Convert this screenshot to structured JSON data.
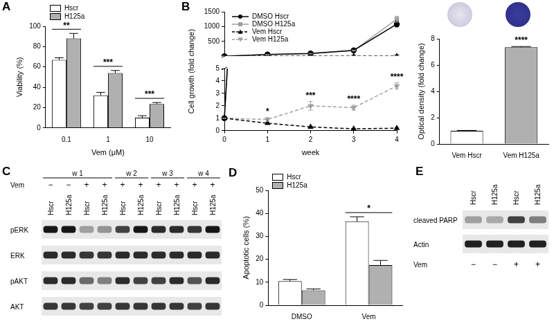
{
  "chart_data": [
    {
      "panel": "A",
      "type": "bar",
      "categories": [
        "0.1",
        "1",
        "10"
      ],
      "xlabel": "Vem (μM)",
      "ylabel": "Viability (%)",
      "ylim": [
        0,
        100
      ],
      "yticks": [
        0,
        20,
        40,
        60,
        80,
        100
      ],
      "grid": false,
      "legend": "upper left",
      "series": [
        {
          "name": "Hscr",
          "color": "#ffffff",
          "values": [
            67,
            32,
            10
          ],
          "errors": [
            2,
            3,
            2
          ]
        },
        {
          "name": "H125a",
          "color": "#b0b0b0",
          "values": [
            88,
            54,
            23.5
          ],
          "errors": [
            5,
            2.5,
            1.5
          ]
        }
      ],
      "annotations": [
        {
          "category": "0.1",
          "text": "**"
        },
        {
          "category": "1",
          "text": "***"
        },
        {
          "category": "10",
          "text": "***"
        }
      ]
    },
    {
      "panel": "B",
      "type": "line",
      "x": [
        0,
        1,
        2,
        3,
        4
      ],
      "xlim": [
        0,
        4
      ],
      "xticks": [
        0,
        1,
        2,
        3,
        4
      ],
      "xlabel": "week",
      "ylabel": "Cell growth (fold change)",
      "ylim": [
        0,
        1500
      ],
      "yticks": [
        0,
        1,
        2,
        3,
        4,
        5,
        500,
        1000,
        1500
      ],
      "y_break": 5,
      "grid": false,
      "legend": "upper left",
      "series": [
        {
          "name": "DMSO Hscr",
          "color": "#000000",
          "marker": "circle",
          "line_style": "solid",
          "values": [
            1,
            60,
            90,
            200,
            1080
          ],
          "errors": [
            0,
            5,
            8,
            15,
            90
          ]
        },
        {
          "name": "DMSO H125a",
          "color": "#a0a0a0",
          "marker": "square",
          "line_style": "solid",
          "values": [
            1,
            55,
            85,
            190,
            1250
          ],
          "errors": [
            0,
            5,
            8,
            15,
            100
          ]
        },
        {
          "name": "Vem Hscr",
          "color": "#000000",
          "marker": "triangle",
          "line_style": "dashed",
          "values": [
            1,
            0.6,
            0.3,
            0.15,
            0.2
          ],
          "errors": [
            0,
            0.03,
            0.03,
            0.02,
            0.03
          ]
        },
        {
          "name": "Vem H125a",
          "color": "#a0a0a0",
          "marker": "triangle-down",
          "line_style": "dashed",
          "values": [
            1,
            0.9,
            2.0,
            1.85,
            3.6
          ],
          "errors": [
            0,
            0.15,
            0.35,
            0.2,
            0.25
          ]
        }
      ],
      "annotations": [
        {
          "x": 1,
          "series": "Vem H125a",
          "text": "*"
        },
        {
          "x": 2,
          "series": "Vem H125a",
          "text": "***"
        },
        {
          "x": 3,
          "series": "Vem H125a",
          "text": "****"
        },
        {
          "x": 4,
          "series": "Vem H125a",
          "text": "****"
        }
      ]
    },
    {
      "type": "bar",
      "categories": [
        "Vem Hscr",
        "Vem H125a"
      ],
      "ylabel": "Optical density (fold change)",
      "ylim": [
        0,
        8
      ],
      "yticks": [
        0,
        2,
        4,
        6,
        8
      ],
      "grid": false,
      "colors": [
        "#ffffff",
        "#b0b0b0"
      ],
      "values": [
        1,
        7.35
      ],
      "errors": [
        0.03,
        0.06
      ],
      "annotations": [
        {
          "category": "Vem H125a",
          "text": "****"
        }
      ]
    },
    {
      "panel": "D",
      "type": "bar",
      "categories": [
        "DMSO",
        "Vem"
      ],
      "ylabel": "Apoptotic cells (%)",
      "ylim": [
        0,
        50
      ],
      "yticks": [
        0,
        10,
        20,
        30,
        40,
        50
      ],
      "grid": false,
      "legend": "upper left",
      "series": [
        {
          "name": "Hscr",
          "color": "#ffffff",
          "values": [
            10.5,
            36.5
          ],
          "errors": [
            0.7,
            2
          ]
        },
        {
          "name": "H125a",
          "color": "#b0b0b0",
          "values": [
            6.5,
            17.5
          ],
          "errors": [
            0.6,
            2
          ]
        }
      ],
      "annotations": [
        {
          "category": "Vem",
          "text": "*"
        }
      ]
    }
  ],
  "blots": [
    {
      "panel": "C",
      "groups": [
        {
          "label": "w 1",
          "lanes": 4
        },
        {
          "label": "w 2",
          "lanes": 2
        },
        {
          "label": "w 3",
          "lanes": 2
        },
        {
          "label": "w 4",
          "lanes": 2
        }
      ],
      "lanes": [
        "Hscr",
        "H125a",
        "Hscr",
        "H125a",
        "Hscr",
        "H125a",
        "Hscr",
        "H125a",
        "Hscr",
        "H125a"
      ],
      "treatment_label": "Vem",
      "treatment": [
        "−",
        "−",
        "+",
        "+",
        "+",
        "+",
        "+",
        "+",
        "+",
        "+"
      ],
      "rows": [
        {
          "label": "pERK",
          "intensity": [
            1,
            1,
            0.35,
            0.4,
            0.8,
            1,
            0.9,
            0.9,
            0.85,
            1
          ]
        },
        {
          "label": "ERK",
          "intensity": [
            0.9,
            0.9,
            0.85,
            0.85,
            0.9,
            0.9,
            0.9,
            0.9,
            0.9,
            0.9
          ]
        },
        {
          "label": "pAKT",
          "intensity": [
            0.9,
            0.9,
            0.6,
            0.5,
            0.9,
            0.8,
            0.8,
            0.9,
            0.7,
            0.9
          ]
        },
        {
          "label": "AKT",
          "intensity": [
            0.85,
            0.85,
            0.8,
            0.8,
            0.85,
            0.85,
            0.85,
            0.85,
            0.8,
            0.85
          ]
        }
      ]
    },
    {
      "panel": "E",
      "lanes": [
        "Hscr",
        "H125a",
        "Hscr",
        "H125a"
      ],
      "treatment_label": "Vem",
      "treatment": [
        "−",
        "−",
        "+",
        "+"
      ],
      "rows": [
        {
          "label": "cleaved PARP",
          "intensity": [
            0.35,
            0.3,
            0.8,
            0.5
          ]
        },
        {
          "label": "Actin",
          "intensity": [
            0.95,
            0.95,
            0.95,
            0.95
          ]
        }
      ]
    }
  ]
}
